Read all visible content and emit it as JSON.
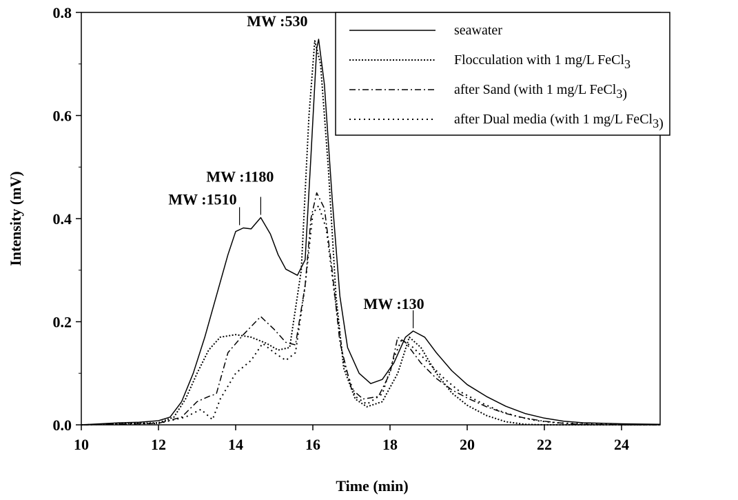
{
  "chart_data": {
    "type": "line",
    "title": "",
    "xlabel": "Time (min)",
    "ylabel": "Intensity (mV)",
    "xlim": [
      10,
      25
    ],
    "ylim": [
      0,
      0.8
    ],
    "x_ticks": [
      "10",
      "12",
      "14",
      "16",
      "18",
      "20",
      "22",
      "24"
    ],
    "y_ticks": [
      "0.0",
      "0.2",
      "0.4",
      "0.6",
      "0.8"
    ],
    "grid": false,
    "legend_position": "top-right",
    "series": [
      {
        "name": "seawater",
        "style": "solid",
        "points": [
          [
            10,
            0
          ],
          [
            11,
            0.004
          ],
          [
            11.5,
            0.005
          ],
          [
            12,
            0.008
          ],
          [
            12.3,
            0.015
          ],
          [
            12.6,
            0.045
          ],
          [
            12.9,
            0.1
          ],
          [
            13.2,
            0.17
          ],
          [
            13.5,
            0.25
          ],
          [
            13.8,
            0.33
          ],
          [
            14.0,
            0.375
          ],
          [
            14.2,
            0.382
          ],
          [
            14.4,
            0.38
          ],
          [
            14.65,
            0.402
          ],
          [
            14.9,
            0.37
          ],
          [
            15.1,
            0.33
          ],
          [
            15.3,
            0.302
          ],
          [
            15.6,
            0.29
          ],
          [
            15.8,
            0.32
          ],
          [
            15.95,
            0.52
          ],
          [
            16.1,
            0.73
          ],
          [
            16.15,
            0.748
          ],
          [
            16.3,
            0.66
          ],
          [
            16.5,
            0.44
          ],
          [
            16.7,
            0.25
          ],
          [
            16.9,
            0.15
          ],
          [
            17.2,
            0.1
          ],
          [
            17.5,
            0.08
          ],
          [
            17.8,
            0.088
          ],
          [
            18.1,
            0.12
          ],
          [
            18.4,
            0.17
          ],
          [
            18.6,
            0.182
          ],
          [
            18.9,
            0.17
          ],
          [
            19.2,
            0.14
          ],
          [
            19.6,
            0.105
          ],
          [
            20,
            0.078
          ],
          [
            20.5,
            0.055
          ],
          [
            21,
            0.036
          ],
          [
            21.5,
            0.022
          ],
          [
            22,
            0.013
          ],
          [
            22.5,
            0.007
          ],
          [
            23,
            0.004
          ],
          [
            24,
            0.002
          ],
          [
            25,
            0.001
          ]
        ]
      },
      {
        "name": "Flocculation with 1 mg/L FeCl3",
        "style": "dotted",
        "points": [
          [
            10,
            0
          ],
          [
            12,
            0.004
          ],
          [
            12.4,
            0.015
          ],
          [
            12.7,
            0.05
          ],
          [
            13.0,
            0.1
          ],
          [
            13.3,
            0.145
          ],
          [
            13.6,
            0.17
          ],
          [
            14.0,
            0.175
          ],
          [
            14.4,
            0.17
          ],
          [
            14.8,
            0.158
          ],
          [
            15.1,
            0.145
          ],
          [
            15.4,
            0.15
          ],
          [
            15.7,
            0.3
          ],
          [
            15.9,
            0.6
          ],
          [
            16.05,
            0.745
          ],
          [
            16.2,
            0.7
          ],
          [
            16.4,
            0.5
          ],
          [
            16.6,
            0.25
          ],
          [
            16.8,
            0.11
          ],
          [
            17.1,
            0.05
          ],
          [
            17.4,
            0.035
          ],
          [
            17.8,
            0.045
          ],
          [
            18.2,
            0.1
          ],
          [
            18.5,
            0.17
          ],
          [
            18.8,
            0.15
          ],
          [
            19.2,
            0.1
          ],
          [
            19.6,
            0.062
          ],
          [
            20,
            0.038
          ],
          [
            20.5,
            0.018
          ],
          [
            21,
            0.006
          ],
          [
            21.5,
            0.001
          ],
          [
            22,
            0
          ],
          [
            25,
            0
          ]
        ]
      },
      {
        "name": "after Sand (with 1 mg/L FeCl3)",
        "style": "dashdot",
        "points": [
          [
            10,
            0
          ],
          [
            12,
            0.003
          ],
          [
            12.6,
            0.015
          ],
          [
            13.0,
            0.045
          ],
          [
            13.3,
            0.055
          ],
          [
            13.5,
            0.06
          ],
          [
            13.8,
            0.14
          ],
          [
            14.2,
            0.175
          ],
          [
            14.65,
            0.21
          ],
          [
            15.0,
            0.185
          ],
          [
            15.3,
            0.16
          ],
          [
            15.55,
            0.155
          ],
          [
            15.8,
            0.27
          ],
          [
            15.95,
            0.4
          ],
          [
            16.1,
            0.45
          ],
          [
            16.3,
            0.42
          ],
          [
            16.5,
            0.3
          ],
          [
            16.7,
            0.16
          ],
          [
            17.0,
            0.07
          ],
          [
            17.3,
            0.05
          ],
          [
            17.7,
            0.055
          ],
          [
            18.0,
            0.1
          ],
          [
            18.2,
            0.17
          ],
          [
            18.4,
            0.16
          ],
          [
            18.8,
            0.12
          ],
          [
            19.2,
            0.09
          ],
          [
            19.6,
            0.068
          ],
          [
            20,
            0.052
          ],
          [
            20.5,
            0.035
          ],
          [
            21,
            0.022
          ],
          [
            21.5,
            0.013
          ],
          [
            22,
            0.007
          ],
          [
            22.5,
            0.003
          ],
          [
            23,
            0.001
          ],
          [
            24,
            0
          ],
          [
            25,
            0
          ]
        ]
      },
      {
        "name": "after Dual media (with 1 mg/L FeCl3)",
        "style": "sparse-dotted",
        "points": [
          [
            10,
            0
          ],
          [
            12,
            0.003
          ],
          [
            12.7,
            0.015
          ],
          [
            13.1,
            0.03
          ],
          [
            13.4,
            0.01
          ],
          [
            13.6,
            0.05
          ],
          [
            14.0,
            0.1
          ],
          [
            14.4,
            0.125
          ],
          [
            14.7,
            0.158
          ],
          [
            15.0,
            0.14
          ],
          [
            15.3,
            0.125
          ],
          [
            15.55,
            0.14
          ],
          [
            15.8,
            0.27
          ],
          [
            16.0,
            0.41
          ],
          [
            16.15,
            0.425
          ],
          [
            16.35,
            0.38
          ],
          [
            16.55,
            0.26
          ],
          [
            16.8,
            0.12
          ],
          [
            17.1,
            0.055
          ],
          [
            17.4,
            0.04
          ],
          [
            17.8,
            0.06
          ],
          [
            18.1,
            0.13
          ],
          [
            18.3,
            0.165
          ],
          [
            18.6,
            0.15
          ],
          [
            19.0,
            0.12
          ],
          [
            19.4,
            0.09
          ],
          [
            19.8,
            0.065
          ],
          [
            20.3,
            0.045
          ],
          [
            20.8,
            0.028
          ],
          [
            21.3,
            0.016
          ],
          [
            21.8,
            0.008
          ],
          [
            22.3,
            0.004
          ],
          [
            23,
            0.002
          ],
          [
            24,
            0
          ],
          [
            25,
            0
          ]
        ]
      }
    ],
    "annotations": [
      {
        "text": "MW :530",
        "x": 16.15,
        "y": 0.748
      },
      {
        "text": "MW :1510",
        "x": 14.1,
        "y": 0.382
      },
      {
        "text": "MW :1180",
        "x": 14.65,
        "y": 0.402
      },
      {
        "text": "MW :130",
        "x": 18.6,
        "y": 0.182
      }
    ]
  }
}
